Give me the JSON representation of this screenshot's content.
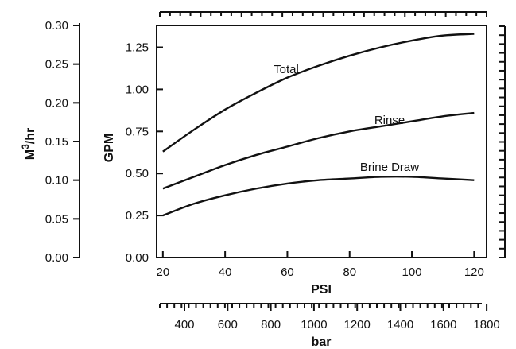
{
  "chart_data": {
    "type": "line",
    "title": "",
    "xlabel": "PSI",
    "ylabel": "GPM",
    "x_ticks": [
      20,
      40,
      60,
      80,
      100,
      120
    ],
    "xlim": [
      18,
      124
    ],
    "ylim": [
      0,
      1.38
    ],
    "y_ticks": [
      "0.00",
      "0.25",
      "0.50",
      "0.75",
      "1.00",
      "1.25"
    ],
    "secondary_y": {
      "label_main": "M",
      "label_sup": "3",
      "label_rest": "/hr",
      "ticks": [
        "0.00",
        "0.05",
        "0.10",
        "0.15",
        "0.20",
        "0.25",
        "0.30"
      ]
    },
    "secondary_x": {
      "label": "bar",
      "ticks": [
        "400",
        "600",
        "800",
        "1000",
        "1200",
        "1400",
        "1600",
        "1800"
      ]
    },
    "series": [
      {
        "name": "Total",
        "x": [
          20,
          30,
          40,
          50,
          60,
          70,
          80,
          90,
          100,
          110,
          120
        ],
        "y": [
          0.63,
          0.76,
          0.88,
          0.98,
          1.07,
          1.14,
          1.2,
          1.25,
          1.29,
          1.32,
          1.33
        ]
      },
      {
        "name": "Rinse",
        "x": [
          20,
          30,
          40,
          50,
          60,
          70,
          80,
          90,
          100,
          110,
          120
        ],
        "y": [
          0.41,
          0.48,
          0.55,
          0.61,
          0.66,
          0.71,
          0.75,
          0.78,
          0.81,
          0.84,
          0.86
        ]
      },
      {
        "name": "Brine Draw",
        "x": [
          20,
          30,
          40,
          50,
          60,
          70,
          80,
          90,
          100,
          110,
          120
        ],
        "y": [
          0.25,
          0.32,
          0.37,
          0.41,
          0.44,
          0.46,
          0.47,
          0.48,
          0.48,
          0.47,
          0.46
        ]
      }
    ]
  }
}
